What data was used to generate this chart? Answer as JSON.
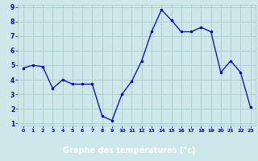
{
  "x": [
    0,
    1,
    2,
    3,
    4,
    5,
    6,
    7,
    8,
    9,
    10,
    11,
    12,
    13,
    14,
    15,
    16,
    17,
    18,
    19,
    20,
    21,
    22,
    23
  ],
  "y": [
    4.8,
    5.0,
    4.9,
    3.4,
    4.0,
    3.7,
    3.7,
    3.7,
    1.5,
    1.2,
    3.0,
    3.9,
    5.3,
    7.3,
    8.8,
    8.1,
    7.3,
    7.3,
    7.6,
    7.3,
    4.5,
    5.3,
    4.5,
    2.1
  ],
  "line_color": "#0000cc",
  "marker": "o",
  "marker_size": 2,
  "bg_color": "#cce8e8",
  "grid_color": "#aacccc",
  "xlabel": "Graphe des températures (°c)",
  "xlabel_color": "white",
  "xlabel_bg": "#0000bb",
  "tick_color": "#0000cc",
  "ylim": [
    1,
    9
  ],
  "xlim": [
    -0.5,
    23.5
  ],
  "yticks": [
    1,
    2,
    3,
    4,
    5,
    6,
    7,
    8,
    9
  ],
  "xticks": [
    0,
    1,
    2,
    3,
    4,
    5,
    6,
    7,
    8,
    9,
    10,
    11,
    12,
    13,
    14,
    15,
    16,
    17,
    18,
    19,
    20,
    21,
    22,
    23
  ]
}
